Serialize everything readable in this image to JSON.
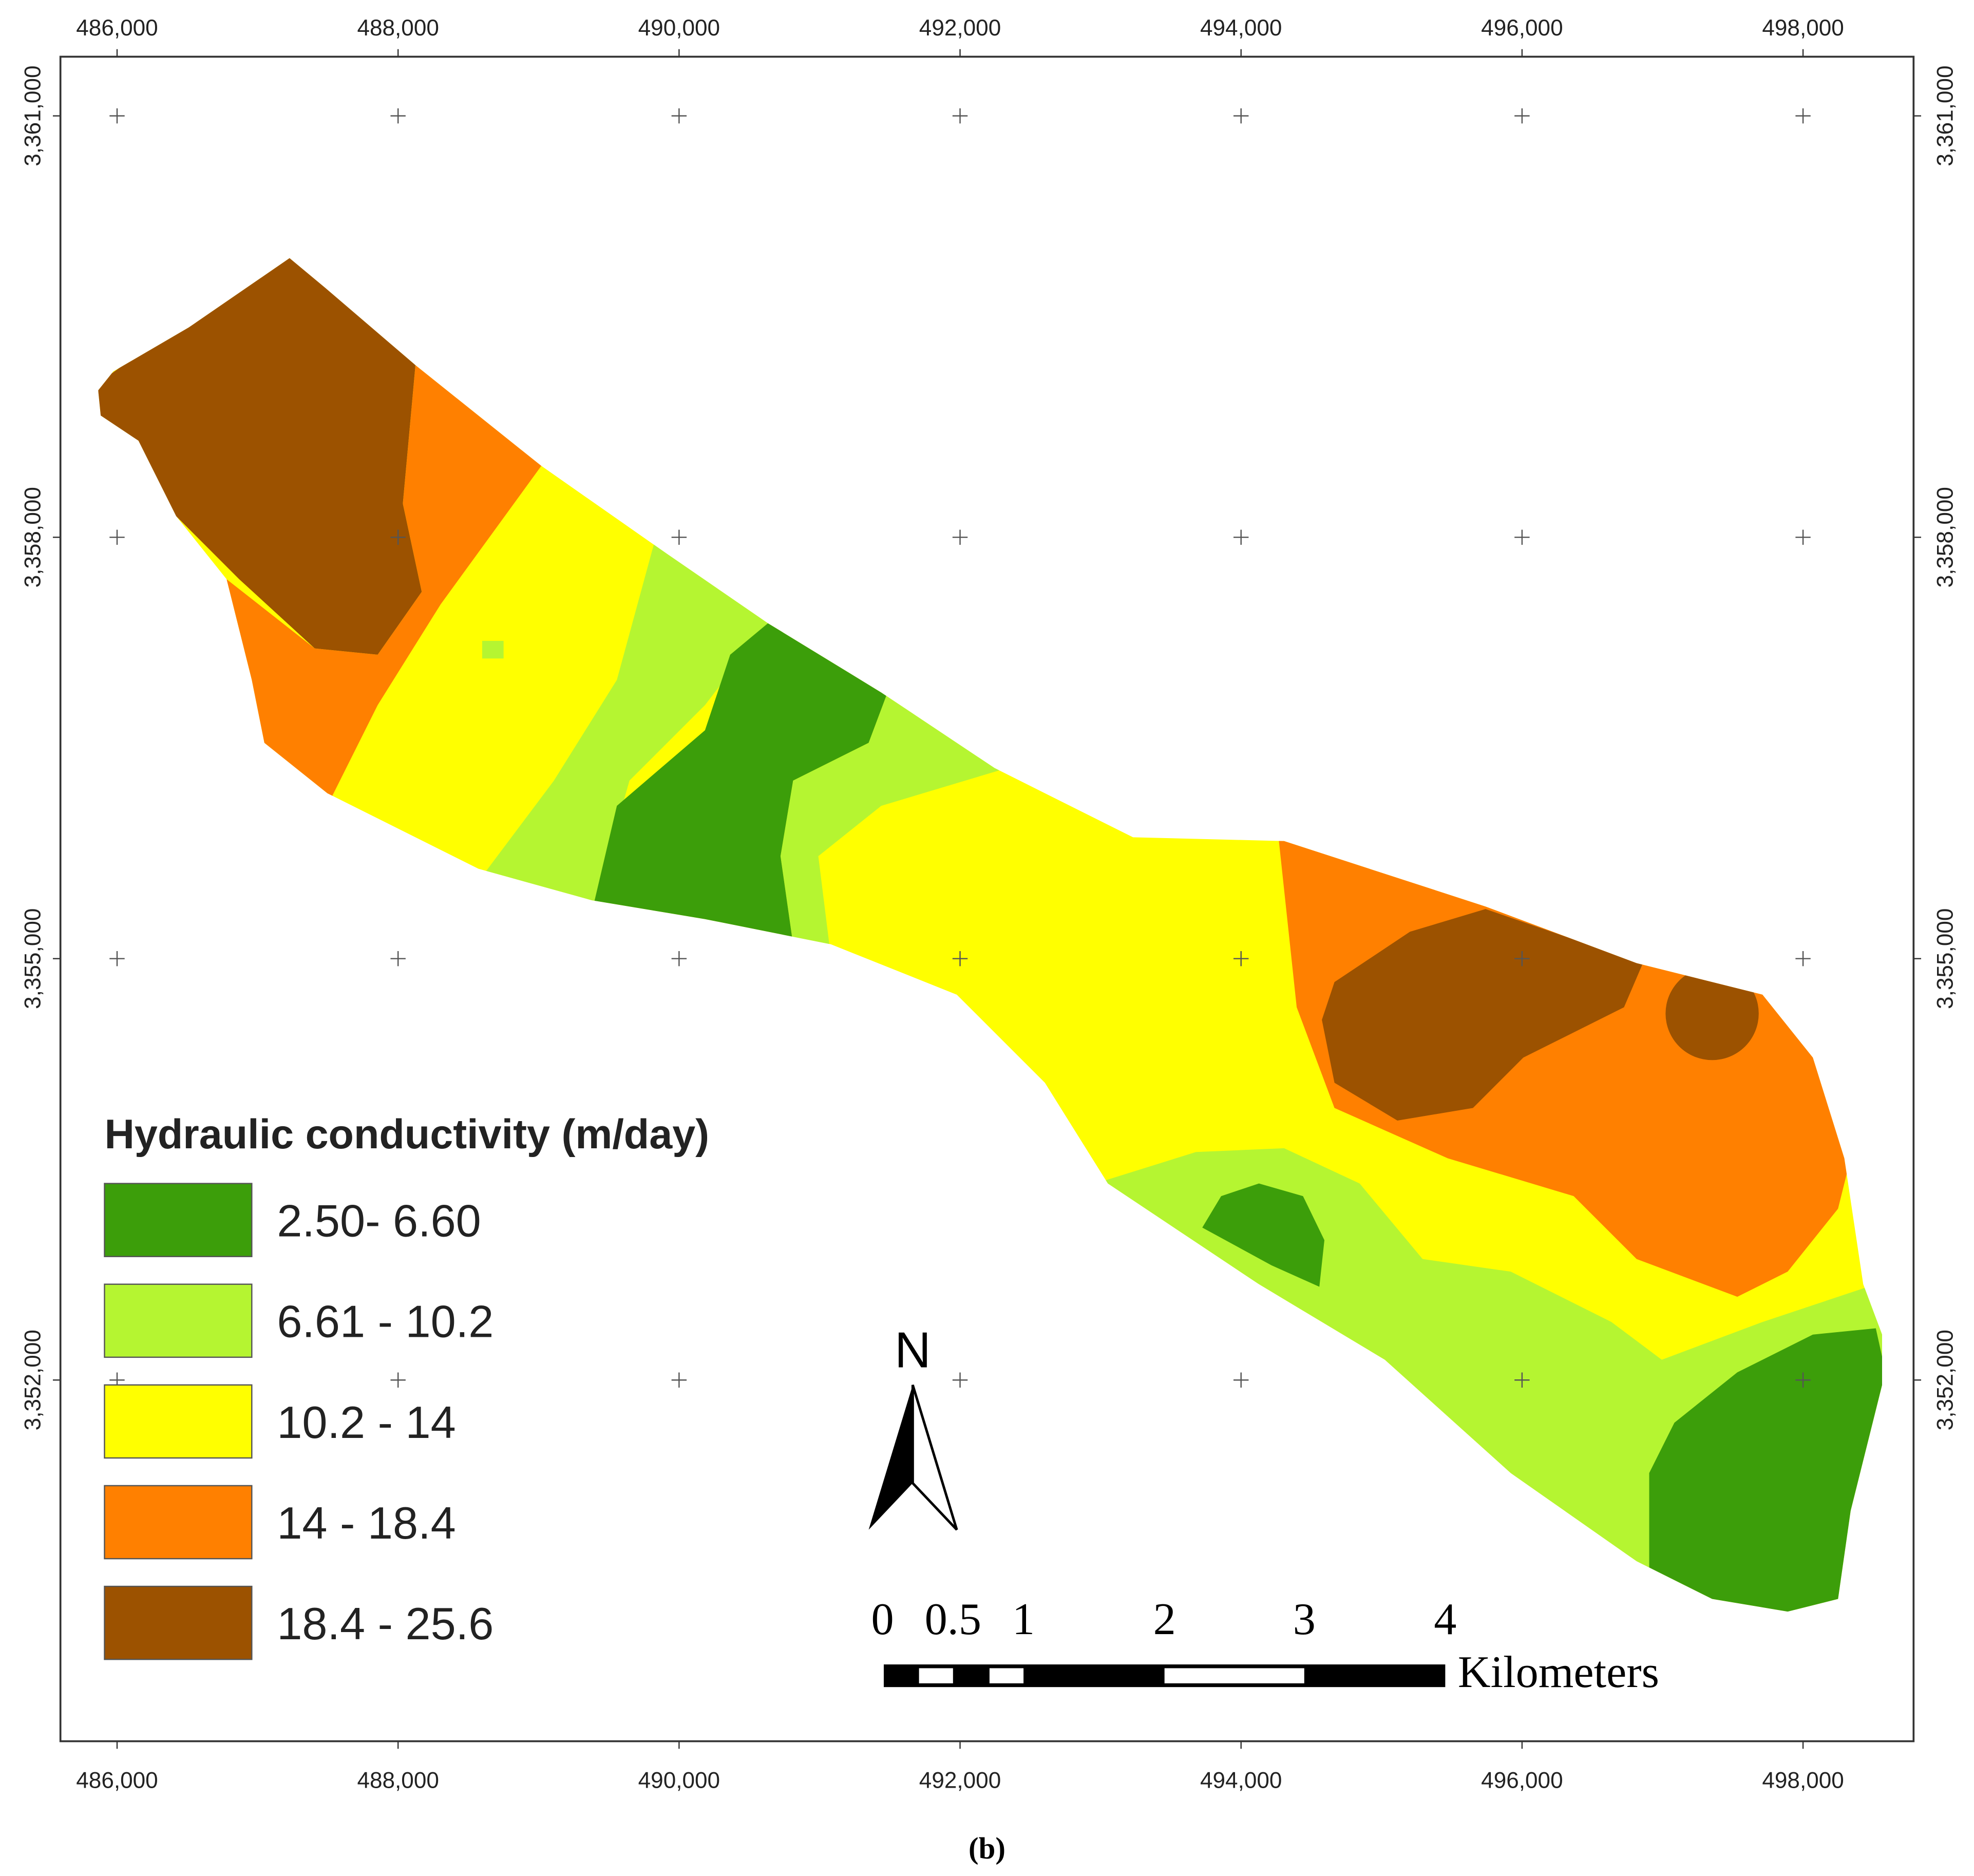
{
  "map": {
    "x_labels": [
      "486,000",
      "488,000",
      "490,000",
      "492,000",
      "494,000",
      "496,000",
      "498,000"
    ],
    "y_labels": [
      "3,361,000",
      "3,358,000",
      "3,355,000",
      "3,352,000"
    ],
    "legend": {
      "title": "Hydraulic conductivity (m/day)",
      "items": [
        {
          "label": "2.50- 6.60",
          "color": "#3c9e0a"
        },
        {
          "label": "6.61 - 10.2",
          "color": "#b5f531"
        },
        {
          "label": "10.2 - 14",
          "color": "#ffff00"
        },
        {
          "label": "14 - 18.4",
          "color": "#ff8000"
        },
        {
          "label": "18.4 - 25.6",
          "color": "#9c5200"
        }
      ]
    },
    "north": "N",
    "scale_bar": {
      "labels": [
        "0",
        "0.5",
        "1",
        "2",
        "3",
        "4"
      ],
      "unit": "Kilometers"
    },
    "caption": "(b)"
  }
}
